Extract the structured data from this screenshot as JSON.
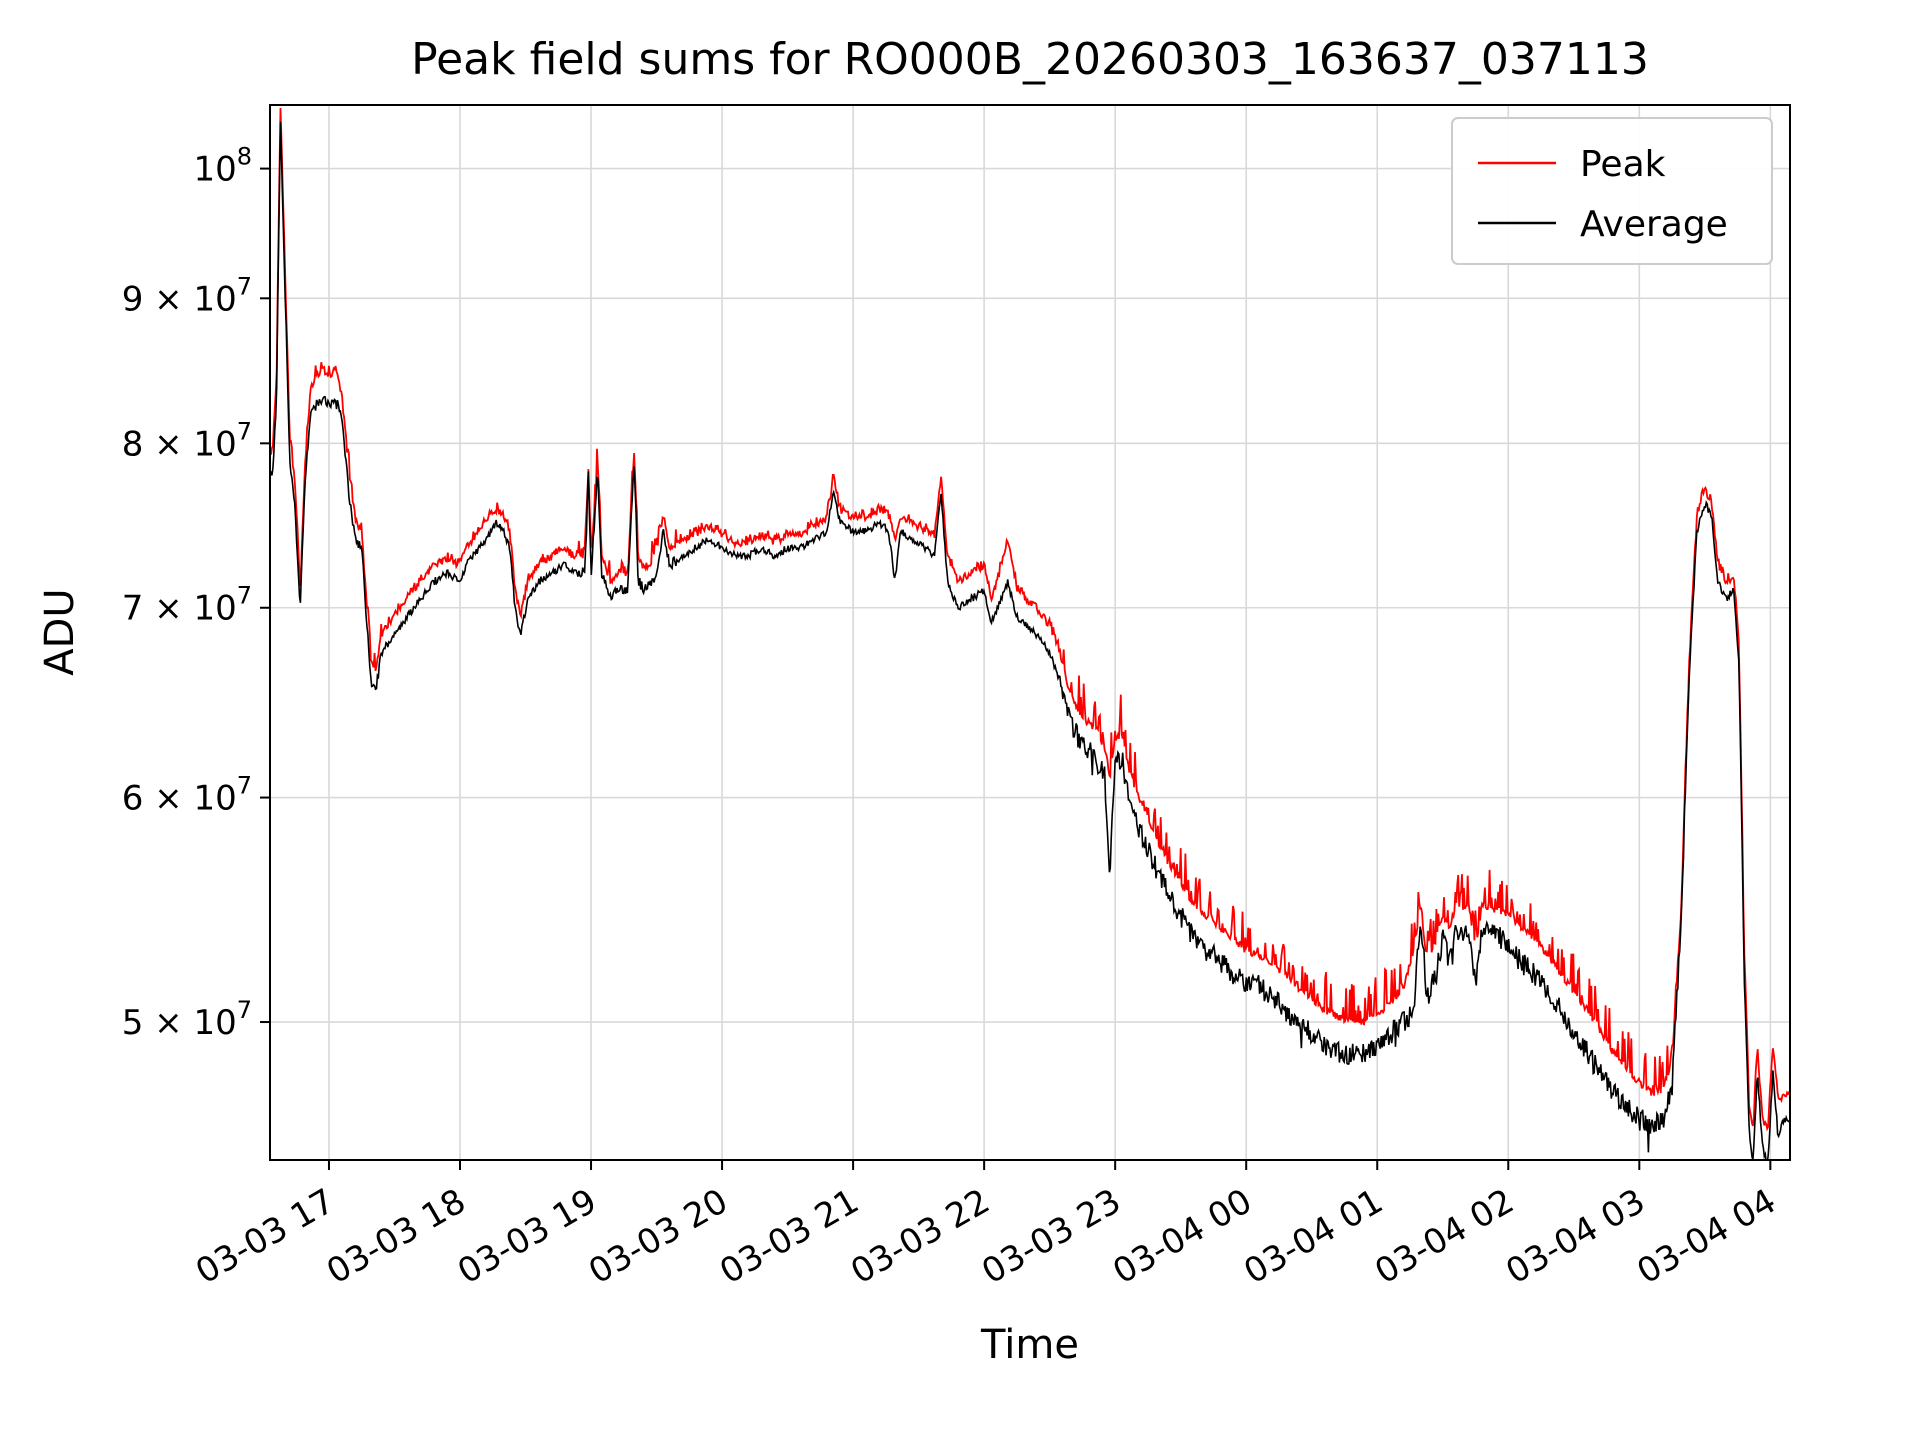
{
  "chart_data": {
    "type": "line",
    "title": "Peak field sums for RO000B_20260303_163637_037113",
    "xlabel": "Time",
    "ylabel": "ADU",
    "y_scale": "log",
    "grid": true,
    "legend_position": "upper right",
    "xlim": [
      16.55,
      28.15
    ],
    "ylim": [
      44700000,
      105300000
    ],
    "values_scale": 10000000,
    "x_ticks": {
      "values": [
        17,
        18,
        19,
        20,
        21,
        22,
        23,
        24,
        25,
        26,
        27,
        28
      ],
      "labels": [
        "03-03 17",
        "03-03 18",
        "03-03 19",
        "03-03 20",
        "03-03 21",
        "03-03 22",
        "03-03 23",
        "03-04 00",
        "03-04 01",
        "03-04 02",
        "03-04 03",
        "03-04 04"
      ]
    },
    "y_ticks": [
      {
        "value": 50000000,
        "base": "5 × 10",
        "exp": "7"
      },
      {
        "value": 60000000,
        "base": "6 × 10",
        "exp": "7"
      },
      {
        "value": 70000000,
        "base": "7 × 10",
        "exp": "7"
      },
      {
        "value": 80000000,
        "base": "8 × 10",
        "exp": "7"
      },
      {
        "value": 90000000,
        "base": "9 × 10",
        "exp": "7"
      },
      {
        "value": 100000000,
        "base": "10",
        "exp": "8"
      }
    ],
    "t_hours": [
      16.57,
      16.6,
      16.63,
      16.66,
      16.7,
      16.74,
      16.78,
      16.82,
      16.86,
      16.9,
      16.95,
      17.0,
      17.05,
      17.1,
      17.15,
      17.2,
      17.25,
      17.28,
      17.32,
      17.36,
      17.4,
      17.45,
      17.5,
      17.6,
      17.7,
      17.8,
      17.9,
      18.0,
      18.05,
      18.1,
      18.2,
      18.28,
      18.33,
      18.38,
      18.42,
      18.46,
      18.52,
      18.6,
      18.7,
      18.8,
      18.88,
      18.95,
      18.98,
      19.0,
      19.05,
      19.08,
      19.15,
      19.2,
      19.28,
      19.33,
      19.36,
      19.42,
      19.5,
      19.55,
      19.6,
      19.7,
      19.8,
      19.9,
      20.0,
      20.1,
      20.2,
      20.3,
      20.4,
      20.5,
      20.6,
      20.7,
      20.8,
      20.85,
      20.9,
      21.0,
      21.1,
      21.2,
      21.27,
      21.32,
      21.36,
      21.45,
      21.55,
      21.62,
      21.67,
      21.72,
      21.8,
      21.9,
      22.0,
      22.05,
      22.1,
      22.18,
      22.25,
      22.32,
      22.4,
      22.5,
      22.58,
      22.63,
      22.68,
      22.75,
      22.85,
      22.92,
      22.96,
      23.0,
      23.05,
      23.1,
      23.18,
      23.25,
      23.32,
      23.4,
      23.5,
      23.6,
      23.7,
      23.8,
      23.9,
      24.0,
      24.1,
      24.2,
      24.3,
      24.4,
      24.5,
      24.6,
      24.7,
      24.8,
      24.9,
      25.0,
      25.1,
      25.2,
      25.28,
      25.33,
      25.38,
      25.45,
      25.5,
      25.55,
      25.6,
      25.65,
      25.7,
      25.75,
      25.8,
      25.9,
      26.0,
      26.1,
      26.2,
      26.3,
      26.4,
      26.5,
      26.6,
      26.7,
      26.8,
      26.9,
      27.0,
      27.1,
      27.18,
      27.25,
      27.32,
      27.38,
      27.44,
      27.5,
      27.55,
      27.6,
      27.66,
      27.72,
      27.76,
      27.8,
      27.84,
      27.87,
      27.9,
      27.94,
      27.98,
      28.02,
      28.06,
      28.1
    ],
    "series": [
      {
        "name": "Peak",
        "color": "#ff0000",
        "values": [
          7.95,
          8.45,
          10.5,
          9.35,
          8.05,
          7.75,
          7.1,
          7.9,
          8.35,
          8.45,
          8.5,
          8.45,
          8.5,
          8.3,
          7.85,
          7.5,
          7.45,
          7.1,
          6.7,
          6.65,
          6.85,
          6.9,
          6.95,
          7.05,
          7.15,
          7.25,
          7.28,
          7.25,
          7.35,
          7.4,
          7.5,
          7.58,
          7.55,
          7.45,
          7.1,
          6.95,
          7.15,
          7.25,
          7.3,
          7.33,
          7.3,
          7.3,
          7.85,
          7.25,
          7.9,
          7.3,
          7.15,
          7.2,
          7.2,
          7.95,
          7.28,
          7.22,
          7.32,
          7.55,
          7.35,
          7.4,
          7.43,
          7.48,
          7.43,
          7.38,
          7.38,
          7.43,
          7.38,
          7.43,
          7.43,
          7.48,
          7.53,
          7.78,
          7.58,
          7.53,
          7.53,
          7.58,
          7.55,
          7.4,
          7.53,
          7.5,
          7.45,
          7.42,
          7.78,
          7.3,
          7.15,
          7.2,
          7.25,
          7.05,
          7.15,
          7.4,
          7.1,
          7.05,
          7.0,
          6.9,
          6.75,
          6.6,
          6.5,
          6.4,
          6.35,
          6.25,
          6.1,
          6.28,
          6.33,
          6.15,
          6.0,
          5.9,
          5.8,
          5.7,
          5.6,
          5.5,
          5.45,
          5.4,
          5.35,
          5.3,
          5.28,
          5.24,
          5.2,
          5.14,
          5.1,
          5.05,
          5.02,
          5.0,
          5.0,
          5.03,
          5.08,
          5.14,
          5.3,
          5.5,
          5.25,
          5.35,
          5.45,
          5.4,
          5.5,
          5.48,
          5.5,
          5.3,
          5.5,
          5.48,
          5.45,
          5.4,
          5.35,
          5.28,
          5.2,
          5.12,
          5.05,
          4.97,
          4.88,
          4.82,
          4.76,
          4.72,
          4.73,
          4.85,
          5.48,
          6.68,
          7.55,
          7.7,
          7.63,
          7.25,
          7.15,
          7.18,
          6.8,
          5.3,
          4.65,
          4.58,
          4.9,
          4.62,
          4.58,
          4.9,
          4.68,
          4.72
        ]
      },
      {
        "name": "Average",
        "color": "#000000",
        "values": [
          7.8,
          8.3,
          10.4,
          9.2,
          7.9,
          7.6,
          7.0,
          7.8,
          8.2,
          8.25,
          8.3,
          8.25,
          8.3,
          8.15,
          7.7,
          7.4,
          7.35,
          7.0,
          6.6,
          6.55,
          6.75,
          6.8,
          6.85,
          6.95,
          7.05,
          7.15,
          7.2,
          7.15,
          7.25,
          7.3,
          7.4,
          7.5,
          7.45,
          7.35,
          7.0,
          6.85,
          7.05,
          7.15,
          7.2,
          7.25,
          7.2,
          7.2,
          7.8,
          7.15,
          7.85,
          7.2,
          7.05,
          7.1,
          7.1,
          7.9,
          7.15,
          7.1,
          7.2,
          7.45,
          7.25,
          7.3,
          7.35,
          7.4,
          7.35,
          7.3,
          7.3,
          7.35,
          7.3,
          7.35,
          7.35,
          7.4,
          7.45,
          7.7,
          7.5,
          7.45,
          7.45,
          7.5,
          7.45,
          7.15,
          7.45,
          7.4,
          7.35,
          7.3,
          7.7,
          7.15,
          7.0,
          7.05,
          7.1,
          6.9,
          7.0,
          7.15,
          6.95,
          6.9,
          6.85,
          6.75,
          6.6,
          6.45,
          6.35,
          6.25,
          6.2,
          6.1,
          5.65,
          6.15,
          6.2,
          6.0,
          5.85,
          5.75,
          5.65,
          5.55,
          5.45,
          5.35,
          5.3,
          5.25,
          5.2,
          5.15,
          5.15,
          5.1,
          5.05,
          5.0,
          4.95,
          4.9,
          4.88,
          4.87,
          4.88,
          4.9,
          4.95,
          5.0,
          5.05,
          5.45,
          5.1,
          5.2,
          5.35,
          5.25,
          5.4,
          5.35,
          5.4,
          5.15,
          5.4,
          5.38,
          5.32,
          5.25,
          5.2,
          5.12,
          5.05,
          4.95,
          4.88,
          4.8,
          4.72,
          4.67,
          4.62,
          4.6,
          4.62,
          4.75,
          5.4,
          6.6,
          7.45,
          7.62,
          7.55,
          7.15,
          7.05,
          7.1,
          6.7,
          5.2,
          4.55,
          4.47,
          4.8,
          4.52,
          4.45,
          4.8,
          4.55,
          4.62
        ]
      }
    ],
    "style": {
      "grid_color": "#d9d9d9",
      "axis_color": "#000000",
      "legend_border_color": "#cccccc",
      "background": "#ffffff"
    }
  }
}
